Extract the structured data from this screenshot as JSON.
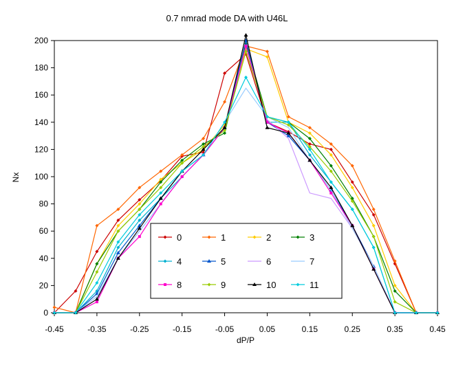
{
  "chart_data": {
    "type": "line",
    "title": "0.7 nmrad mode DA with U46L",
    "xlabel": "dP/P",
    "ylabel": "Nx",
    "xlim": [
      -0.45,
      0.45
    ],
    "ylim": [
      0,
      200
    ],
    "x_ticks": [
      "-0.45",
      "-0.35",
      "-0.25",
      "-0.15",
      "-0.05",
      "0.05",
      "0.15",
      "0.25",
      "0.35",
      "0.45"
    ],
    "y_ticks": [
      "0",
      "20",
      "40",
      "60",
      "80",
      "100",
      "120",
      "140",
      "160",
      "180",
      "200"
    ],
    "grid": false,
    "legend_placement": "bottom-center",
    "x": [
      -0.45,
      -0.4,
      -0.35,
      -0.3,
      -0.25,
      -0.2,
      -0.15,
      -0.1,
      -0.05,
      0.0,
      0.05,
      0.1,
      0.15,
      0.2,
      0.25,
      0.3,
      0.35,
      0.4,
      0.45
    ],
    "series": [
      {
        "name": "0",
        "color": "#cc0000",
        "marker": "diamond",
        "values": [
          0,
          16,
          45,
          68,
          83,
          97,
          115,
          118,
          176,
          190,
          140,
          133,
          124,
          120,
          96,
          72,
          36,
          0,
          0
        ]
      },
      {
        "name": "1",
        "color": "#ff6600",
        "marker": "diamond",
        "values": [
          4,
          0,
          64,
          76,
          92,
          104,
          116,
          128,
          155,
          196,
          192,
          144,
          136,
          124,
          108,
          76,
          38,
          0,
          0
        ]
      },
      {
        "name": "2",
        "color": "#ffcc00",
        "marker": "diamond",
        "values": [
          0,
          0,
          36,
          64,
          80,
          98,
          110,
          120,
          138,
          194,
          188,
          140,
          132,
          116,
          92,
          64,
          20,
          0,
          0
        ]
      },
      {
        "name": "3",
        "color": "#008000",
        "marker": "diamond",
        "values": [
          0,
          0,
          36,
          60,
          76,
          96,
          112,
          124,
          132,
          198,
          144,
          140,
          128,
          108,
          84,
          56,
          16,
          0,
          0
        ]
      },
      {
        "name": "4",
        "color": "#00b0d0",
        "marker": "diamond",
        "values": [
          0,
          0,
          16,
          48,
          68,
          84,
          100,
          116,
          136,
          196,
          140,
          140,
          116,
          96,
          76,
          48,
          0,
          0,
          0
        ]
      },
      {
        "name": "5",
        "color": "#0055cc",
        "marker": "triangle",
        "values": [
          0,
          0,
          14,
          44,
          64,
          84,
          104,
          116,
          136,
          200,
          140,
          130,
          112,
          90,
          64,
          34,
          0,
          0,
          0
        ]
      },
      {
        "name": "6",
        "color": "#cc99ff",
        "marker": "none",
        "values": [
          0,
          0,
          12,
          40,
          60,
          80,
          100,
          116,
          136,
          196,
          142,
          128,
          88,
          84,
          62,
          34,
          0,
          0,
          0
        ]
      },
      {
        "name": "7",
        "color": "#99ccff",
        "marker": "none",
        "values": [
          0,
          0,
          12,
          40,
          60,
          80,
          100,
          116,
          140,
          165,
          144,
          136,
          112,
          90,
          62,
          34,
          0,
          0,
          0
        ]
      },
      {
        "name": "8",
        "color": "#ff00cc",
        "marker": "square",
        "values": [
          0,
          0,
          8,
          40,
          56,
          80,
          100,
          116,
          136,
          196,
          140,
          132,
          112,
          88,
          64,
          32,
          0,
          0,
          0
        ]
      },
      {
        "name": "9",
        "color": "#99cc00",
        "marker": "diamond",
        "values": [
          0,
          0,
          30,
          60,
          76,
          92,
          110,
          122,
          134,
          192,
          144,
          138,
          122,
          104,
          82,
          56,
          8,
          0,
          0
        ]
      },
      {
        "name": "10",
        "color": "#000000",
        "marker": "triangle",
        "values": [
          0,
          0,
          10,
          40,
          62,
          84,
          104,
          120,
          136,
          204,
          136,
          132,
          112,
          92,
          64,
          32,
          0,
          0,
          0
        ]
      },
      {
        "name": "11",
        "color": "#00ccdd",
        "marker": "diamond",
        "values": [
          0,
          0,
          22,
          52,
          72,
          88,
          104,
          116,
          140,
          173,
          144,
          140,
          120,
          96,
          76,
          48,
          0,
          0,
          0
        ]
      }
    ]
  }
}
